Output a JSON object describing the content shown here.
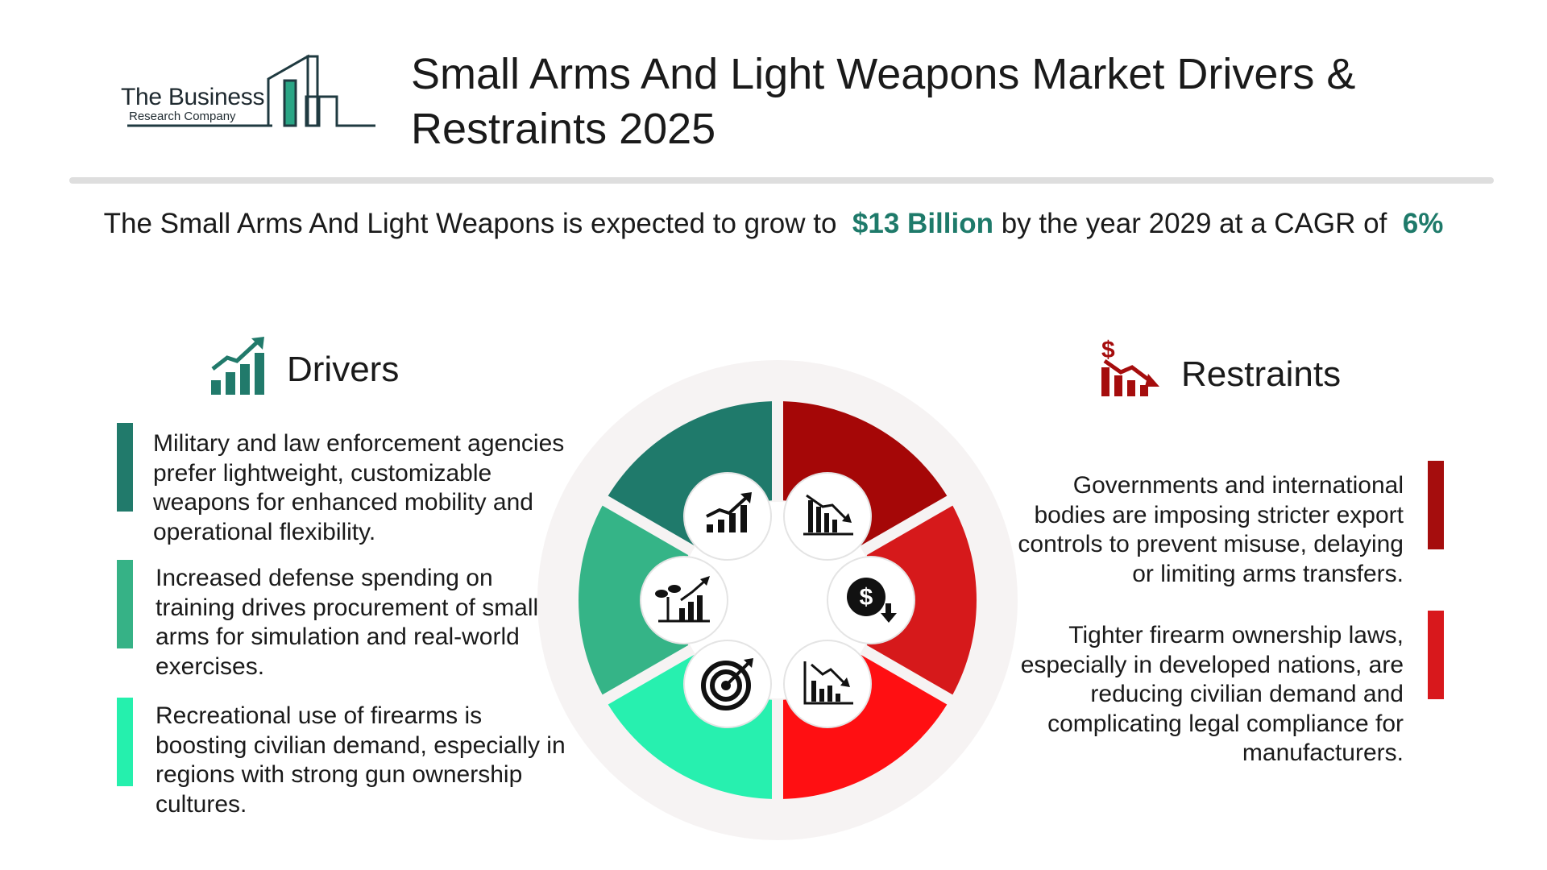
{
  "brand": {
    "line1": "The Business",
    "line2": "Research Company"
  },
  "header": {
    "title": "Small Arms And Light Weapons Market Drivers & Restraints 2025"
  },
  "summary": {
    "prefix": "The Small Arms And Light Weapons is expected to grow to",
    "value": "$13 Billion",
    "middle": "by the year 2029 at a CAGR of",
    "cagr": "6%"
  },
  "drivers": {
    "heading": "Drivers",
    "icon": "growth-chart-icon",
    "items": [
      {
        "text": "Military and law enforcement agencies prefer lightweight, customizable weapons for enhanced mobility and operational flexibility.",
        "color": "#217a6b"
      },
      {
        "text": "Increased defense spending on training drives procurement of small arms for simulation and real-world exercises.",
        "color": "#36b286"
      },
      {
        "text": "Recreational use of firearms is boosting civilian demand, especially in regions with strong gun ownership cultures.",
        "color": "#25f0ad"
      }
    ]
  },
  "restraints": {
    "heading": "Restraints",
    "icon": "dollar-decline-icon",
    "items": [
      {
        "text": "Governments and international bodies are imposing stricter export controls to prevent misuse, delaying or limiting arms transfers.",
        "color": "#a50d0d"
      },
      {
        "text": "Tighter firearm ownership laws, especially in developed nations, are reducing civilian demand and complicating legal compliance for manufacturers.",
        "color": "#d8181c"
      }
    ]
  },
  "wheel": {
    "segment_colors": [
      "#1f7a6b",
      "#35b487",
      "#27f0af",
      "#ff0f12",
      "#d6191b",
      "#a50707"
    ],
    "icons": [
      "rising-bar-chart-icon",
      "plant-growth-chart-icon",
      "target-icon",
      "falling-chart-icon",
      "dollar-down-icon",
      "declining-bar-chart-icon"
    ]
  }
}
